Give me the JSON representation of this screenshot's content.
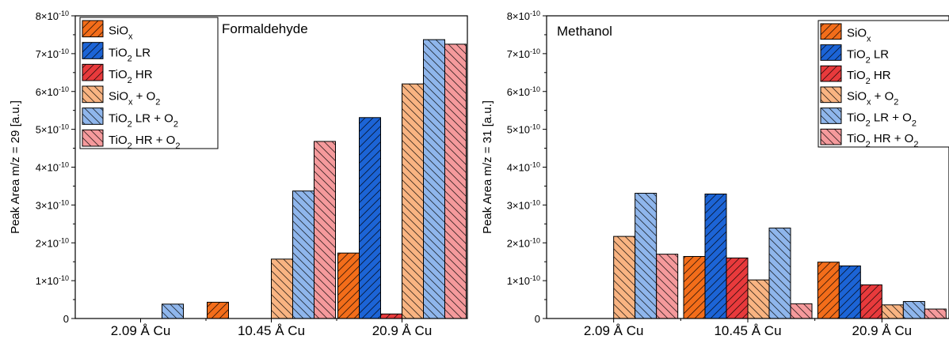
{
  "chart_data": [
    {
      "type": "bar",
      "title": "Formaldehyde",
      "ylabel": "Peak Area m/z = 29 [a.u.]",
      "xlabel": "",
      "categories": [
        "2.09 Å Cu",
        "10.45 Å Cu",
        "20.9 Å Cu"
      ],
      "ylim": [
        0,
        8e-10
      ],
      "yticks": [
        "0",
        "1×10^-10",
        "2×10^-10",
        "3×10^-10",
        "4×10^-10",
        "5×10^-10",
        "6×10^-10",
        "7×10^-10",
        "8×10^-10"
      ],
      "legend_position": "top-left",
      "series": [
        {
          "name": "SiOx",
          "color": "#f36d1a",
          "hatch": "forward",
          "values": [
            0,
            4.3e-11,
            1.73e-10
          ]
        },
        {
          "name": "TiO2 LR",
          "color": "#1c64d6",
          "hatch": "forward",
          "values": [
            0,
            0,
            5.31e-10
          ]
        },
        {
          "name": "TiO2 HR",
          "color": "#e83a3c",
          "hatch": "forward",
          "values": [
            0,
            0,
            1.2e-11
          ]
        },
        {
          "name": "SiOx + O2",
          "color": "#f9b482",
          "hatch": "back",
          "values": [
            0,
            1.57e-10,
            6.2e-10
          ]
        },
        {
          "name": "TiO2 LR + O2",
          "color": "#8fb6ec",
          "hatch": "back",
          "values": [
            3.8e-11,
            3.37e-10,
            7.37e-10
          ]
        },
        {
          "name": "TiO2 HR + O2",
          "color": "#f59a9c",
          "hatch": "back",
          "values": [
            0,
            4.68e-10,
            7.25e-10
          ]
        }
      ]
    },
    {
      "type": "bar",
      "title": "Methanol",
      "ylabel": "Peak Area m/z = 31 [a.u.]",
      "xlabel": "",
      "categories": [
        "2.09 Å Cu",
        "10.45 Å Cu",
        "20.9 Å Cu"
      ],
      "ylim": [
        0,
        8e-10
      ],
      "yticks": [
        "0",
        "1×10^-10",
        "2×10^-10",
        "3×10^-10",
        "4×10^-10",
        "5×10^-10",
        "6×10^-10",
        "7×10^-10",
        "8×10^-10"
      ],
      "legend_position": "top-right",
      "series": [
        {
          "name": "SiOx",
          "color": "#f36d1a",
          "hatch": "forward",
          "values": [
            0,
            1.64e-10,
            1.49e-10
          ]
        },
        {
          "name": "TiO2 LR",
          "color": "#1c64d6",
          "hatch": "forward",
          "values": [
            0,
            3.29e-10,
            1.39e-10
          ]
        },
        {
          "name": "TiO2 HR",
          "color": "#e83a3c",
          "hatch": "forward",
          "values": [
            0,
            1.6e-10,
            8.9e-11
          ]
        },
        {
          "name": "SiOx + O2",
          "color": "#f9b482",
          "hatch": "back",
          "values": [
            2.17e-10,
            1.02e-10,
            3.6e-11
          ]
        },
        {
          "name": "TiO2 LR + O2",
          "color": "#8fb6ec",
          "hatch": "back",
          "values": [
            3.31e-10,
            2.39e-10,
            4.5e-11
          ]
        },
        {
          "name": "TiO2 HR + O2",
          "color": "#f59a9c",
          "hatch": "back",
          "values": [
            1.7e-10,
            3.9e-11,
            2.5e-11
          ]
        }
      ]
    }
  ]
}
